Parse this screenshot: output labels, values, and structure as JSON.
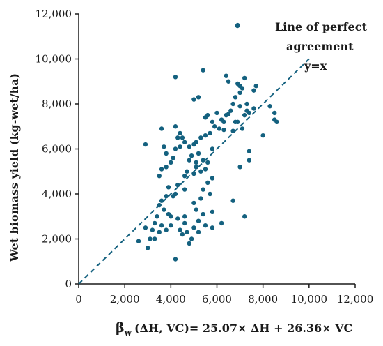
{
  "chart_data": {
    "type": "scatter",
    "xlim": [
      0,
      12000
    ],
    "ylim": [
      0,
      12000
    ],
    "x_ticks": [
      "0",
      "2,000",
      "4,000",
      "6,000",
      "8,000",
      "10,000",
      "12,000"
    ],
    "y_ticks": [
      "0",
      "2,000",
      "4,000",
      "6,000",
      "8,000",
      "10,000",
      "12,000"
    ],
    "ylabel": "Wet biomass yield (kg-wet/ha)",
    "xlabel": {
      "beta": "β",
      "sub": "w",
      "rest": "(ΔH, VC)= 25.07× ΔH + 26.36× VC"
    },
    "legend": {
      "line1": "Line of perfect",
      "line2": "agreement",
      "line3": "y=x",
      "placement": "top-right"
    },
    "grid": false,
    "marker_color": "#14617f",
    "reference_line": {
      "style": "dashed",
      "from": [
        0,
        0
      ],
      "to": [
        10000,
        10000
      ],
      "color": "#14617f"
    },
    "points": [
      [
        6900,
        11500
      ],
      [
        4200,
        9200
      ],
      [
        5400,
        9500
      ],
      [
        6400,
        9250
      ],
      [
        7200,
        9150
      ],
      [
        6500,
        9000
      ],
      [
        6900,
        8900
      ],
      [
        7000,
        8800
      ],
      [
        7100,
        8700
      ],
      [
        7700,
        8800
      ],
      [
        7600,
        8600
      ],
      [
        7000,
        8500
      ],
      [
        6800,
        8300
      ],
      [
        5000,
        8200
      ],
      [
        5200,
        8300
      ],
      [
        6700,
        8000
      ],
      [
        6600,
        7700
      ],
      [
        6000,
        7600
      ],
      [
        5600,
        7500
      ],
      [
        5500,
        7400
      ],
      [
        5800,
        7200
      ],
      [
        6200,
        7300
      ],
      [
        6300,
        7200
      ],
      [
        5900,
        7000
      ],
      [
        6100,
        6900
      ],
      [
        6300,
        6850
      ],
      [
        6700,
        6800
      ],
      [
        7100,
        6900
      ],
      [
        6900,
        7200
      ],
      [
        7200,
        7500
      ],
      [
        7400,
        7600
      ],
      [
        7300,
        7700
      ],
      [
        7600,
        7800
      ],
      [
        7300,
        8000
      ],
      [
        7000,
        7900
      ],
      [
        6500,
        7550
      ],
      [
        6400,
        7500
      ],
      [
        6800,
        7200
      ],
      [
        8300,
        7900
      ],
      [
        8500,
        7600
      ],
      [
        8500,
        7300
      ],
      [
        8600,
        7200
      ],
      [
        8000,
        6600
      ],
      [
        7400,
        5900
      ],
      [
        7400,
        5500
      ],
      [
        7000,
        5200
      ],
      [
        5800,
        6000
      ],
      [
        5700,
        6700
      ],
      [
        5500,
        6600
      ],
      [
        5300,
        6500
      ],
      [
        5100,
        6300
      ],
      [
        5000,
        6200
      ],
      [
        5200,
        5800
      ],
      [
        5400,
        5500
      ],
      [
        5100,
        5400
      ],
      [
        5100,
        5200
      ],
      [
        4800,
        5500
      ],
      [
        4700,
        5000
      ],
      [
        4600,
        4800
      ],
      [
        4300,
        6500
      ],
      [
        4400,
        6100
      ],
      [
        4200,
        6000
      ],
      [
        4100,
        5600
      ],
      [
        4000,
        5400
      ],
      [
        3800,
        5200
      ],
      [
        3600,
        5100
      ],
      [
        3500,
        4800
      ],
      [
        3600,
        6900
      ],
      [
        3700,
        6100
      ],
      [
        3800,
        5800
      ],
      [
        4200,
        7000
      ],
      [
        4400,
        6700
      ],
      [
        4500,
        6500
      ],
      [
        4600,
        6300
      ],
      [
        4800,
        6100
      ],
      [
        4900,
        5700
      ],
      [
        5600,
        5400
      ],
      [
        5500,
        5100
      ],
      [
        5300,
        5000
      ],
      [
        5000,
        4900
      ],
      [
        4300,
        4400
      ],
      [
        4600,
        4200
      ],
      [
        4200,
        4000
      ],
      [
        4100,
        3900
      ],
      [
        3900,
        4300
      ],
      [
        3800,
        3900
      ],
      [
        3600,
        3700
      ],
      [
        3500,
        3500
      ],
      [
        3700,
        3300
      ],
      [
        3900,
        3100
      ],
      [
        3400,
        3000
      ],
      [
        3300,
        2700
      ],
      [
        3200,
        2400
      ],
      [
        3500,
        2300
      ],
      [
        3800,
        2400
      ],
      [
        4000,
        2600
      ],
      [
        4300,
        2900
      ],
      [
        4600,
        2700
      ],
      [
        4400,
        2400
      ],
      [
        4700,
        2300
      ],
      [
        4500,
        2200
      ],
      [
        4900,
        2000
      ],
      [
        4800,
        1800
      ],
      [
        4200,
        1100
      ],
      [
        5000,
        2500
      ],
      [
        5200,
        2800
      ],
      [
        5400,
        3100
      ],
      [
        5100,
        3300
      ],
      [
        5000,
        3600
      ],
      [
        5300,
        3800
      ],
      [
        5400,
        4200
      ],
      [
        5600,
        4500
      ],
      [
        5800,
        4700
      ],
      [
        5700,
        4000
      ],
      [
        5800,
        3200
      ],
      [
        5500,
        2600
      ],
      [
        5200,
        2300
      ],
      [
        5800,
        2500
      ],
      [
        6200,
        2700
      ],
      [
        6700,
        3700
      ],
      [
        7200,
        3000
      ],
      [
        2900,
        6200
      ],
      [
        2900,
        2500
      ],
      [
        3100,
        2000
      ],
      [
        3000,
        1600
      ],
      [
        2600,
        1900
      ],
      [
        3300,
        2000
      ],
      [
        4600,
        3000
      ],
      [
        4000,
        3000
      ],
      [
        3600,
        2600
      ]
    ]
  }
}
